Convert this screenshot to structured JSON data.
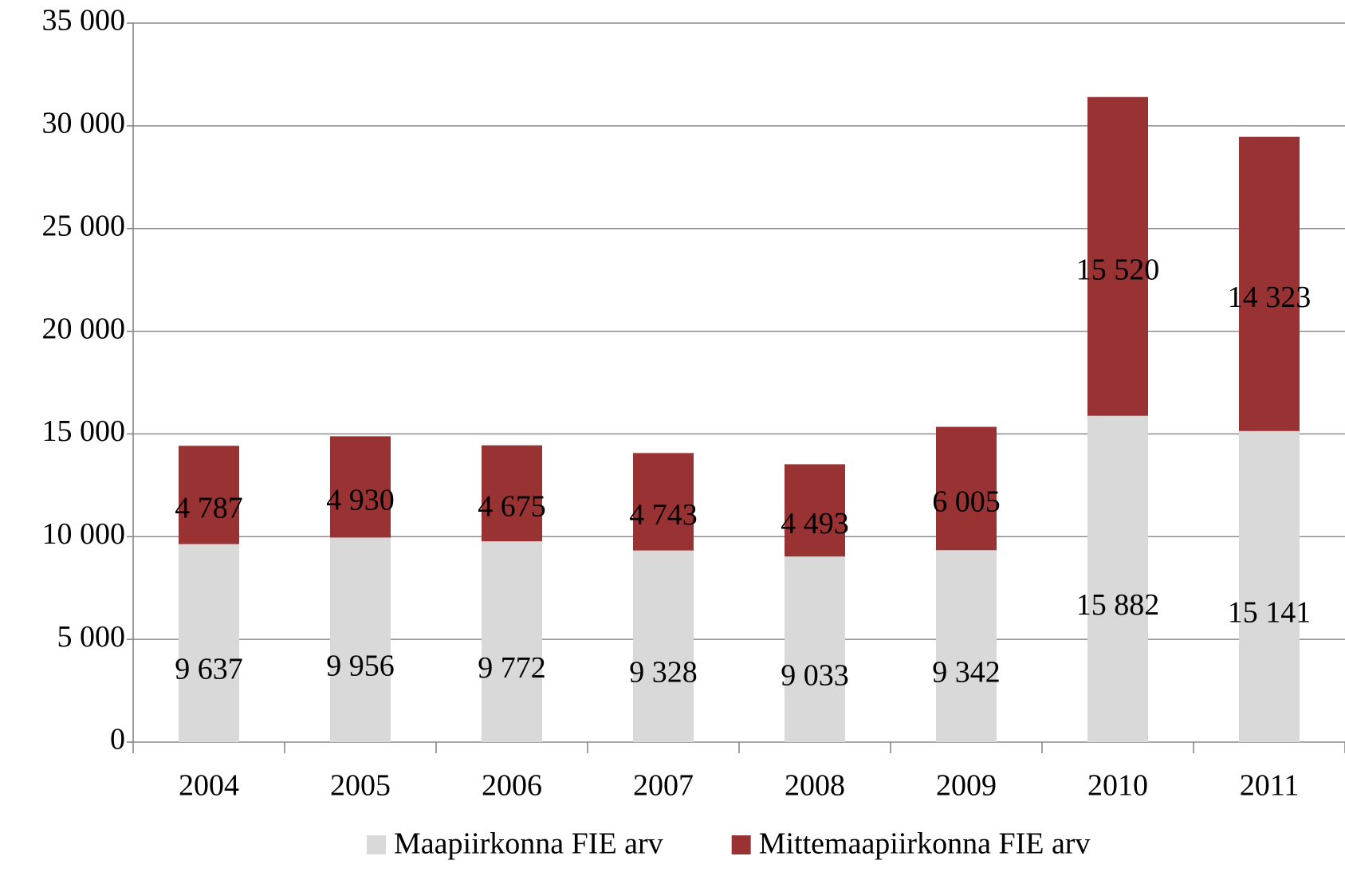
{
  "chart_data": {
    "type": "stacked_bar",
    "categories": [
      "2004",
      "2005",
      "2006",
      "2007",
      "2008",
      "2009",
      "2010",
      "2011"
    ],
    "series": [
      {
        "name": "Maapiirkonna FIE arv",
        "color": "#d9d9d9",
        "values": [
          9637,
          9956,
          9772,
          9328,
          9033,
          9342,
          15882,
          15141
        ],
        "value_labels": [
          "9 637",
          "9 956",
          "9 772",
          "9 328",
          "9 033",
          "9 342",
          "15 882",
          "15 141"
        ]
      },
      {
        "name": "Mittemaapiirkonna FIE arv",
        "color": "#993333",
        "values": [
          4787,
          4930,
          4675,
          4743,
          4493,
          6005,
          15520,
          14323
        ],
        "value_labels": [
          "4 787",
          "4 930",
          "4 675",
          "4 743",
          "4 493",
          "6 005",
          "15 520",
          "14 323"
        ]
      }
    ],
    "ylim": [
      0,
      35000
    ],
    "yticks": [
      {
        "value": 0,
        "label": "0"
      },
      {
        "value": 5000,
        "label": "5 000"
      },
      {
        "value": 10000,
        "label": "10 000"
      },
      {
        "value": 15000,
        "label": "15 000"
      },
      {
        "value": 20000,
        "label": "20 000"
      },
      {
        "value": 25000,
        "label": "25 000"
      },
      {
        "value": 30000,
        "label": "30 000"
      },
      {
        "value": 35000,
        "label": "35 000"
      }
    ],
    "grid": true,
    "legend": "bottom"
  }
}
